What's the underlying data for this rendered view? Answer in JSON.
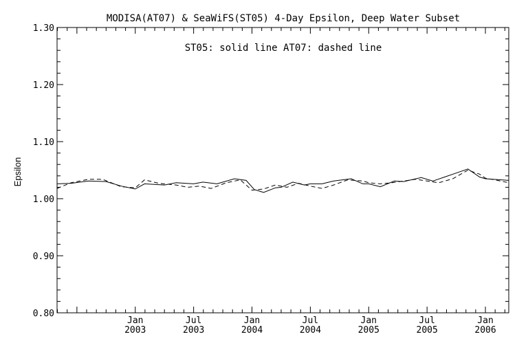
{
  "chart_data": {
    "type": "line",
    "title": "MODISA(AT07) & SeaWiFS(ST05) 4-Day Epsilon, Deep Water Subset",
    "annotation": "ST05: solid line   AT07: dashed line",
    "xlabel": "",
    "ylabel": "Epsilon",
    "ylim": [
      0.8,
      1.3
    ],
    "xlim": [
      2002.33,
      2006.2
    ],
    "yticks": [
      {
        "value": 0.8,
        "label": "0.80"
      },
      {
        "value": 0.9,
        "label": "0.90"
      },
      {
        "value": 1.0,
        "label": "1.00"
      },
      {
        "value": 1.1,
        "label": "1.10"
      },
      {
        "value": 1.2,
        "label": "1.20"
      },
      {
        "value": 1.3,
        "label": "1.30"
      }
    ],
    "xticks": [
      {
        "value": 2003.0,
        "month": "Jan",
        "year": "2003"
      },
      {
        "value": 2003.5,
        "month": "Jul",
        "year": "2003"
      },
      {
        "value": 2004.0,
        "month": "Jan",
        "year": "2004"
      },
      {
        "value": 2004.5,
        "month": "Jul",
        "year": "2004"
      },
      {
        "value": 2005.0,
        "month": "Jan",
        "year": "2005"
      },
      {
        "value": 2005.5,
        "month": "Jul",
        "year": "2005"
      },
      {
        "value": 2006.0,
        "month": "Jan",
        "year": "2006"
      }
    ],
    "series": [
      {
        "name": "ST05",
        "style": "solid",
        "x": [
          2002.33,
          2002.45,
          2002.6,
          2002.75,
          2002.88,
          2003.0,
          2003.08,
          2003.25,
          2003.35,
          2003.5,
          2003.58,
          2003.7,
          2003.85,
          2003.95,
          2004.02,
          2004.1,
          2004.2,
          2004.25,
          2004.35,
          2004.45,
          2004.5,
          2004.6,
          2004.7,
          2004.85,
          2004.95,
          2005.0,
          2005.1,
          2005.22,
          2005.3,
          2005.45,
          2005.55,
          2005.65,
          2005.75,
          2005.85,
          2005.95,
          2006.0,
          2006.2
        ],
        "values": [
          1.026,
          1.027,
          1.031,
          1.03,
          1.022,
          1.017,
          1.026,
          1.024,
          1.028,
          1.026,
          1.029,
          1.026,
          1.035,
          1.032,
          1.016,
          1.011,
          1.019,
          1.02,
          1.029,
          1.024,
          1.026,
          1.026,
          1.031,
          1.035,
          1.026,
          1.026,
          1.021,
          1.031,
          1.03,
          1.037,
          1.031,
          1.038,
          1.045,
          1.052,
          1.038,
          1.035,
          1.032
        ]
      },
      {
        "name": "AT07",
        "style": "dashed",
        "x": [
          2002.33,
          2002.45,
          2002.6,
          2002.72,
          2002.88,
          2003.0,
          2003.08,
          2003.2,
          2003.35,
          2003.45,
          2003.55,
          2003.65,
          2003.78,
          2003.9,
          2004.0,
          2004.1,
          2004.2,
          2004.3,
          2004.4,
          2004.5,
          2004.6,
          2004.7,
          2004.82,
          2004.95,
          2005.0,
          2005.1,
          2005.2,
          2005.3,
          2005.4,
          2005.5,
          2005.6,
          2005.72,
          2005.85,
          2005.95,
          2006.0,
          2006.08,
          2006.2
        ],
        "values": [
          1.018,
          1.028,
          1.034,
          1.034,
          1.021,
          1.019,
          1.033,
          1.027,
          1.024,
          1.02,
          1.022,
          1.018,
          1.028,
          1.033,
          1.015,
          1.017,
          1.024,
          1.02,
          1.027,
          1.022,
          1.018,
          1.024,
          1.033,
          1.031,
          1.028,
          1.026,
          1.028,
          1.031,
          1.034,
          1.031,
          1.028,
          1.035,
          1.05,
          1.043,
          1.036,
          1.033,
          1.028
        ]
      }
    ]
  }
}
